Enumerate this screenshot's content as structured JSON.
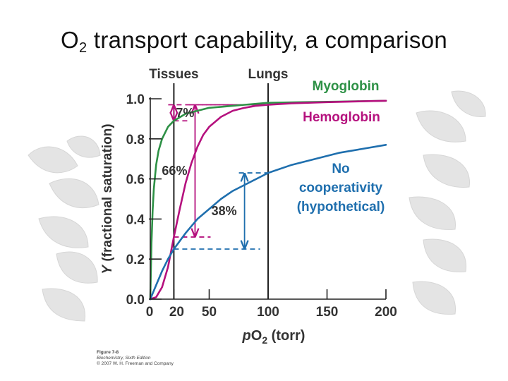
{
  "slide": {
    "title_main": "O",
    "title_sub": "2",
    "title_rest": " transport capability, a comparison"
  },
  "credit": {
    "figure": "Figure 7-8",
    "book": "Biochemistry, Sixth Edition",
    "copyright": "© 2007 W. H. Freeman and Company"
  },
  "chart_data": {
    "type": "line",
    "xlabel_prefix": "p",
    "xlabel_main": "O",
    "xlabel_sub": "2",
    "xlabel_unit": " (torr)",
    "ylabel_var": "Y",
    "ylabel_rest": " (fractional saturation)",
    "xlim": [
      0,
      200
    ],
    "ylim": [
      0,
      1.0
    ],
    "x_ticks": [
      0,
      20,
      50,
      100,
      150,
      200
    ],
    "y_ticks": [
      0.0,
      0.2,
      0.4,
      0.6,
      0.8,
      1.0
    ],
    "x_tick_labels": [
      "0",
      "20",
      "50",
      "100",
      "150",
      "200"
    ],
    "y_tick_labels": [
      "0.0",
      "0.2",
      "0.4",
      "0.6",
      "0.8",
      "1.0"
    ],
    "vertical_markers": [
      {
        "label": "Tissues",
        "x": 20
      },
      {
        "label": "Lungs",
        "x": 100
      }
    ],
    "series": [
      {
        "name": "Myoglobin",
        "color": "#2e9146",
        "x": [
          0,
          1,
          2,
          3,
          5,
          7,
          10,
          15,
          20,
          30,
          40,
          50,
          60,
          80,
          100,
          130,
          160,
          200
        ],
        "y": [
          0,
          0.28,
          0.44,
          0.55,
          0.67,
          0.74,
          0.8,
          0.86,
          0.89,
          0.925,
          0.94,
          0.955,
          0.96,
          0.97,
          0.98,
          0.983,
          0.986,
          0.99
        ]
      },
      {
        "name": "Hemoglobin",
        "color": "#b5117e",
        "x": [
          0,
          5,
          10,
          15,
          20,
          25,
          30,
          35,
          40,
          45,
          50,
          60,
          70,
          80,
          90,
          100,
          120,
          150,
          200
        ],
        "y": [
          0,
          0.01,
          0.06,
          0.16,
          0.31,
          0.45,
          0.58,
          0.68,
          0.76,
          0.82,
          0.86,
          0.91,
          0.94,
          0.955,
          0.965,
          0.97,
          0.977,
          0.983,
          0.99
        ]
      },
      {
        "name": "No cooperativity (hypothetical)",
        "label_lines": [
          "No",
          "cooperativity",
          "(hypothetical)"
        ],
        "color": "#1f6fae",
        "x": [
          0,
          5,
          10,
          15,
          20,
          30,
          40,
          50,
          60,
          70,
          80,
          90,
          100,
          120,
          140,
          160,
          180,
          200
        ],
        "y": [
          0,
          0.07,
          0.14,
          0.2,
          0.25,
          0.33,
          0.4,
          0.45,
          0.5,
          0.54,
          0.57,
          0.6,
          0.63,
          0.67,
          0.7,
          0.73,
          0.75,
          0.77
        ]
      }
    ],
    "annotations": [
      {
        "label": "7%",
        "color": "#b5117e",
        "x": 20,
        "y_from": 0.89,
        "y_to": 0.97,
        "dash_x_from": 20,
        "dash_x_to": 100
      },
      {
        "label": "66%",
        "color": "#b5117e",
        "x": 38,
        "y_from": 0.31,
        "y_to": 0.97,
        "dash_x_from": 20,
        "dash_x_to": 100
      },
      {
        "label": "38%",
        "color": "#1f6fae",
        "x": 80,
        "y_from": 0.25,
        "y_to": 0.63,
        "dash_x_from": 20,
        "dash_x_to": 100
      }
    ]
  }
}
